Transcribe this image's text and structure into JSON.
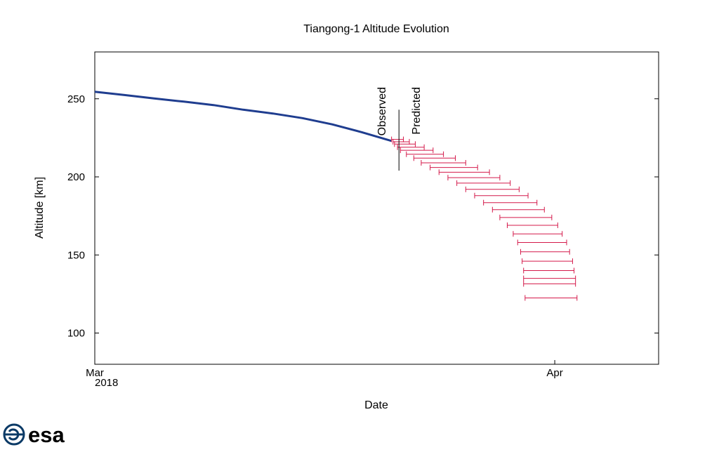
{
  "logo": {
    "text": "esa",
    "brand_color": "#0b3a66"
  },
  "chart_data": {
    "type": "line",
    "title": "Tiangong-1 Altitude Evolution",
    "xlabel": "Date",
    "ylabel": "Altitude [km]",
    "xlim": [
      "2018-03-01",
      "2018-04-08"
    ],
    "ylim": [
      80,
      280
    ],
    "x_ticks": [
      {
        "date": "2018-03-01",
        "label": "Mar",
        "sublabel": "2018"
      },
      {
        "date": "2018-04-01",
        "label": "Apr",
        "sublabel": ""
      }
    ],
    "y_ticks": [
      100,
      150,
      200,
      250
    ],
    "grid": false,
    "annotations": [
      {
        "date": "2018-03-21.5",
        "y_range": [
          204,
          243
        ],
        "left_text": "Observed",
        "right_text": "Predicted"
      }
    ],
    "series": [
      {
        "type": "line",
        "color": "#1f3d8f",
        "points": [
          [
            "2018-03-01",
            254.5
          ],
          [
            "2018-03-03",
            252.4
          ],
          [
            "2018-03-05",
            250.2
          ],
          [
            "2018-03-07",
            248.2
          ],
          [
            "2018-03-09",
            246.0
          ],
          [
            "2018-03-11",
            243.0
          ],
          [
            "2018-03-13",
            240.6
          ],
          [
            "2018-03-15",
            237.6
          ],
          [
            "2018-03-17",
            233.6
          ],
          [
            "2018-03-19",
            228.6
          ],
          [
            "2018-03-21",
            223.0
          ]
        ]
      },
      {
        "type": "error_bars",
        "color": "#d4194a",
        "note_units": "altitude (km) vs date range",
        "bars": [
          {
            "y": 224.0,
            "xmin": "2018-03-21.0",
            "xmax": "2018-03-21.8"
          },
          {
            "y": 222.5,
            "xmin": "2018-03-21.1",
            "xmax": "2018-03-22.2"
          },
          {
            "y": 221.0,
            "xmin": "2018-03-21.2",
            "xmax": "2018-03-22.6"
          },
          {
            "y": 219.0,
            "xmin": "2018-03-21.4",
            "xmax": "2018-03-23.2"
          },
          {
            "y": 217.0,
            "xmin": "2018-03-21.6",
            "xmax": "2018-03-23.8"
          },
          {
            "y": 214.5,
            "xmin": "2018-03-22.0",
            "xmax": "2018-03-24.5"
          },
          {
            "y": 212.0,
            "xmin": "2018-03-22.5",
            "xmax": "2018-03-25.3"
          },
          {
            "y": 209.0,
            "xmin": "2018-03-23.0",
            "xmax": "2018-03-26.0"
          },
          {
            "y": 206.0,
            "xmin": "2018-03-23.6",
            "xmax": "2018-03-26.8"
          },
          {
            "y": 203.0,
            "xmin": "2018-03-24.2",
            "xmax": "2018-03-27.6"
          },
          {
            "y": 199.5,
            "xmin": "2018-03-24.8",
            "xmax": "2018-03-28.3"
          },
          {
            "y": 196.0,
            "xmin": "2018-03-25.4",
            "xmax": "2018-03-29.0"
          },
          {
            "y": 192.0,
            "xmin": "2018-03-26.0",
            "xmax": "2018-03-29.6"
          },
          {
            "y": 188.0,
            "xmin": "2018-03-26.6",
            "xmax": "2018-03-30.2"
          },
          {
            "y": 183.5,
            "xmin": "2018-03-27.2",
            "xmax": "2018-03-30.8"
          },
          {
            "y": 179.0,
            "xmin": "2018-03-27.8",
            "xmax": "2018-03-31.3"
          },
          {
            "y": 174.0,
            "xmin": "2018-03-28.3",
            "xmax": "2018-03-31.8"
          },
          {
            "y": 169.0,
            "xmin": "2018-03-28.8",
            "xmax": "2018-04-01.2"
          },
          {
            "y": 163.5,
            "xmin": "2018-03-29.2",
            "xmax": "2018-04-01.5"
          },
          {
            "y": 158.0,
            "xmin": "2018-03-29.5",
            "xmax": "2018-04-01.8"
          },
          {
            "y": 152.0,
            "xmin": "2018-03-29.7",
            "xmax": "2018-04-02.0"
          },
          {
            "y": 146.0,
            "xmin": "2018-03-29.8",
            "xmax": "2018-04-02.2"
          },
          {
            "y": 140.0,
            "xmin": "2018-03-29.9",
            "xmax": "2018-04-02.3"
          },
          {
            "y": 135.0,
            "xmin": "2018-03-29.9",
            "xmax": "2018-04-02.4"
          },
          {
            "y": 131.5,
            "xmin": "2018-03-29.9",
            "xmax": "2018-04-02.4"
          },
          {
            "y": 122.5,
            "xmin": "2018-03-30.0",
            "xmax": "2018-04-02.5"
          }
        ]
      }
    ]
  }
}
